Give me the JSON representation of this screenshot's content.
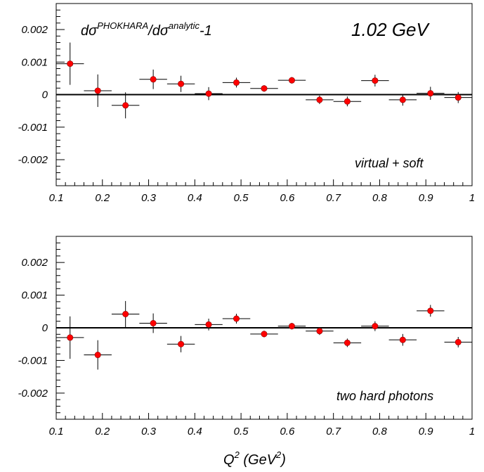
{
  "chart_data": [
    {
      "type": "scatter",
      "title": "",
      "annotations": {
        "ratio_main": "dσ",
        "ratio_sup1": "PHOKHARA",
        "ratio_mid": "/dσ",
        "ratio_sup2": "analytic",
        "ratio_tail": "-1",
        "energy": "1.02 GeV",
        "label": "virtual + soft"
      },
      "xlabel": "",
      "ylabel": "",
      "xlim": [
        0.1,
        1.0
      ],
      "ylim": [
        -0.0028,
        0.0028
      ],
      "x_ticks": [
        "0.1",
        "0.2",
        "0.3",
        "0.4",
        "0.5",
        "0.6",
        "0.7",
        "0.8",
        "0.9",
        "1"
      ],
      "y_ticks": [
        "0.002",
        "0.001",
        "0",
        "-0.001",
        "-0.002"
      ],
      "x_tick_values": [
        0.1,
        0.2,
        0.3,
        0.4,
        0.5,
        0.6,
        0.7,
        0.8,
        0.9,
        1.0
      ],
      "y_tick_values": [
        0.002,
        0.001,
        0,
        -0.001,
        -0.002
      ],
      "bin_half_width": 0.03,
      "reference_line": 0,
      "points": [
        {
          "x": 0.13,
          "y": 0.00095,
          "err": 0.00065
        },
        {
          "x": 0.19,
          "y": 0.00012,
          "err": 0.0005
        },
        {
          "x": 0.25,
          "y": -0.00033,
          "err": 0.0004
        },
        {
          "x": 0.31,
          "y": 0.00047,
          "err": 0.0003
        },
        {
          "x": 0.37,
          "y": 0.00033,
          "err": 0.00025
        },
        {
          "x": 0.43,
          "y": 3e-05,
          "err": 0.0002
        },
        {
          "x": 0.49,
          "y": 0.00037,
          "err": 0.00015
        },
        {
          "x": 0.55,
          "y": 0.00019,
          "err": 0.0001
        },
        {
          "x": 0.61,
          "y": 0.00044,
          "err": 0.0001
        },
        {
          "x": 0.67,
          "y": -0.00016,
          "err": 0.00013
        },
        {
          "x": 0.73,
          "y": -0.00021,
          "err": 0.00015
        },
        {
          "x": 0.79,
          "y": 0.00043,
          "err": 0.00018
        },
        {
          "x": 0.85,
          "y": -0.00016,
          "err": 0.00018
        },
        {
          "x": 0.91,
          "y": 4e-05,
          "err": 0.0002
        },
        {
          "x": 0.97,
          "y": -9e-05,
          "err": 0.00017
        }
      ]
    },
    {
      "type": "scatter",
      "title": "",
      "annotations": {
        "label": "two hard photons"
      },
      "xlabel": "",
      "ylabel": "",
      "xlim": [
        0.1,
        1.0
      ],
      "ylim": [
        -0.0028,
        0.0028
      ],
      "x_ticks": [
        "0.1",
        "0.2",
        "0.3",
        "0.4",
        "0.5",
        "0.6",
        "0.7",
        "0.8",
        "0.9",
        "1"
      ],
      "y_ticks": [
        "0.002",
        "0.001",
        "0",
        "-0.001",
        "-0.002"
      ],
      "x_tick_values": [
        0.1,
        0.2,
        0.3,
        0.4,
        0.5,
        0.6,
        0.7,
        0.8,
        0.9,
        1.0
      ],
      "y_tick_values": [
        0.002,
        0.001,
        0,
        -0.001,
        -0.002
      ],
      "bin_half_width": 0.03,
      "reference_line": 0,
      "points": [
        {
          "x": 0.13,
          "y": -0.0003,
          "err": 0.00065
        },
        {
          "x": 0.19,
          "y": -0.00083,
          "err": 0.00045
        },
        {
          "x": 0.25,
          "y": 0.00042,
          "err": 0.0004
        },
        {
          "x": 0.31,
          "y": 0.00014,
          "err": 0.0003
        },
        {
          "x": 0.37,
          "y": -0.0005,
          "err": 0.00025
        },
        {
          "x": 0.43,
          "y": 0.0001,
          "err": 0.00018
        },
        {
          "x": 0.49,
          "y": 0.00028,
          "err": 0.00015
        },
        {
          "x": 0.55,
          "y": -0.00019,
          "err": 0.0001
        },
        {
          "x": 0.61,
          "y": 5e-05,
          "err": 0.0001
        },
        {
          "x": 0.67,
          "y": -0.0001,
          "err": 0.00012
        },
        {
          "x": 0.73,
          "y": -0.00046,
          "err": 0.00013
        },
        {
          "x": 0.79,
          "y": 5e-05,
          "err": 0.00015
        },
        {
          "x": 0.85,
          "y": -0.00037,
          "err": 0.00018
        },
        {
          "x": 0.91,
          "y": 0.00052,
          "err": 0.00018
        },
        {
          "x": 0.97,
          "y": -0.00044,
          "err": 0.00016
        }
      ]
    }
  ],
  "shared_xlabel": {
    "main": "Q",
    "sup1": "2",
    "mid": " (GeV",
    "sup2": "2",
    "tail": ")"
  },
  "colors": {
    "marker": "#ff0000",
    "axes": "#000000"
  }
}
